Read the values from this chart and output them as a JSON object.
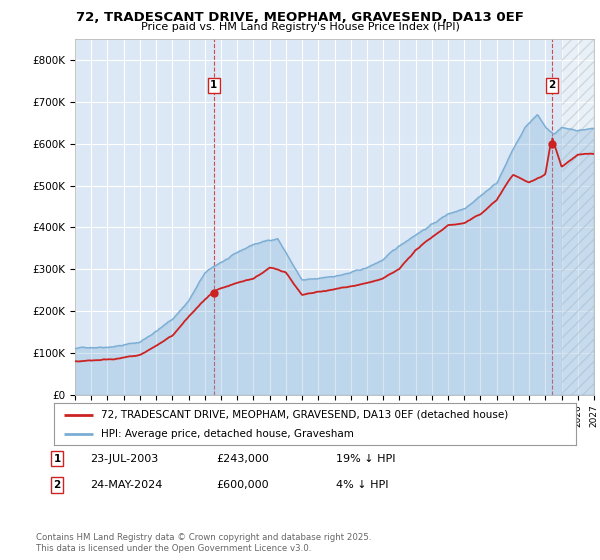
{
  "title": "72, TRADESCANT DRIVE, MEOPHAM, GRAVESEND, DA13 0EF",
  "subtitle": "Price paid vs. HM Land Registry's House Price Index (HPI)",
  "yticks": [
    0,
    100000,
    200000,
    300000,
    400000,
    500000,
    600000,
    700000,
    800000
  ],
  "ytick_labels": [
    "£0",
    "£100K",
    "£200K",
    "£300K",
    "£400K",
    "£500K",
    "£600K",
    "£700K",
    "£800K"
  ],
  "hpi_color": "#7aadd4",
  "price_color": "#cc2222",
  "sale1_year": 2003.56,
  "sale1_price": 243000,
  "sale2_year": 2024.4,
  "sale2_price": 600000,
  "legend_label1": "72, TRADESCANT DRIVE, MEOPHAM, GRAVESEND, DA13 0EF (detached house)",
  "legend_label2": "HPI: Average price, detached house, Gravesham",
  "note1_label": "1",
  "note1_date": "23-JUL-2003",
  "note1_price": "£243,000",
  "note1_hpi": "19% ↓ HPI",
  "note2_label": "2",
  "note2_date": "24-MAY-2024",
  "note2_price": "£600,000",
  "note2_hpi": "4% ↓ HPI",
  "footer": "Contains HM Land Registry data © Crown copyright and database right 2025.\nThis data is licensed under the Open Government Licence v3.0.",
  "background_color": "#ffffff",
  "plot_bg_color": "#dce8f5",
  "grid_color": "#ffffff",
  "xmin": 1995,
  "xmax": 2027,
  "ylim": [
    0,
    850000
  ]
}
